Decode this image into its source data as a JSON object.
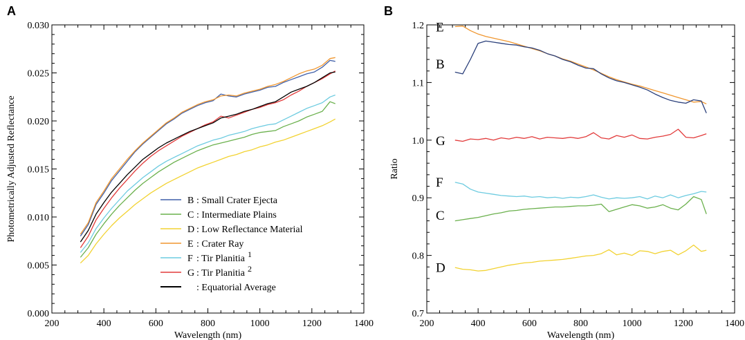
{
  "chart_data": [
    {
      "panel": "A",
      "type": "line",
      "xlabel": "Wavelength (nm)",
      "ylabel": "Photometrically Adjusted Reflectance",
      "xlim": [
        200,
        1400
      ],
      "ylim": [
        0.0,
        0.03
      ],
      "xticks": [
        "200",
        "400",
        "600",
        "800",
        "1000",
        "1200",
        "1400"
      ],
      "yticks": [
        "0.000",
        "0.005",
        "0.010",
        "0.015",
        "0.020",
        "0.025",
        "0.030"
      ],
      "legend_position": "bottom-right",
      "x": [
        310,
        340,
        370,
        400,
        430,
        460,
        490,
        520,
        550,
        580,
        610,
        640,
        670,
        700,
        730,
        760,
        790,
        820,
        850,
        880,
        910,
        940,
        970,
        1000,
        1030,
        1060,
        1090,
        1120,
        1150,
        1180,
        1210,
        1240,
        1270,
        1290
      ],
      "series": [
        {
          "key": "B",
          "letter": "B",
          "text": ": Small Crater Ejecta",
          "sup": "",
          "color": "#3f5fa8",
          "values": [
            0.008,
            0.0092,
            0.0113,
            0.0125,
            0.0138,
            0.0148,
            0.0158,
            0.0168,
            0.0176,
            0.0183,
            0.019,
            0.0197,
            0.0202,
            0.0208,
            0.0212,
            0.0216,
            0.0219,
            0.0221,
            0.0228,
            0.0226,
            0.0225,
            0.0228,
            0.023,
            0.0232,
            0.0235,
            0.0236,
            0.024,
            0.0243,
            0.0246,
            0.0249,
            0.0251,
            0.0256,
            0.0263,
            0.0262
          ]
        },
        {
          "key": "C",
          "letter": "C",
          "text": ": Intermediate Plains",
          "sup": "",
          "color": "#6ab04c",
          "values": [
            0.0058,
            0.0068,
            0.0082,
            0.0093,
            0.0103,
            0.0112,
            0.012,
            0.0128,
            0.0135,
            0.0141,
            0.0147,
            0.0152,
            0.0157,
            0.0161,
            0.0165,
            0.0169,
            0.0172,
            0.0175,
            0.0177,
            0.0179,
            0.0181,
            0.0183,
            0.0186,
            0.0188,
            0.0189,
            0.019,
            0.0194,
            0.0197,
            0.02,
            0.0204,
            0.0207,
            0.021,
            0.022,
            0.0218
          ]
        },
        {
          "key": "D",
          "letter": "D",
          "text": ": Low Reflectance Material",
          "sup": "",
          "color": "#f2d230",
          "values": [
            0.0052,
            0.006,
            0.0072,
            0.0082,
            0.0091,
            0.0099,
            0.0106,
            0.0113,
            0.0119,
            0.0125,
            0.013,
            0.0135,
            0.0139,
            0.0143,
            0.0147,
            0.0151,
            0.0154,
            0.0157,
            0.016,
            0.0163,
            0.0165,
            0.0168,
            0.017,
            0.0173,
            0.0175,
            0.0178,
            0.018,
            0.0183,
            0.0186,
            0.0189,
            0.0192,
            0.0195,
            0.0199,
            0.0202
          ]
        },
        {
          "key": "E",
          "letter": "E",
          "text": ": Crater Ray",
          "sup": "",
          "color": "#f0962e",
          "values": [
            0.0082,
            0.0094,
            0.0115,
            0.0127,
            0.014,
            0.015,
            0.016,
            0.0169,
            0.0177,
            0.0184,
            0.0191,
            0.0198,
            0.0203,
            0.0209,
            0.0213,
            0.0217,
            0.022,
            0.0222,
            0.0226,
            0.0227,
            0.0226,
            0.0229,
            0.0231,
            0.0233,
            0.0236,
            0.0238,
            0.0241,
            0.0245,
            0.0249,
            0.0252,
            0.0254,
            0.0258,
            0.0265,
            0.0266
          ]
        },
        {
          "key": "F",
          "letter": "F",
          "text": ": Tir Planitia",
          "sup": "1",
          "color": "#6ccbe0",
          "values": [
            0.0063,
            0.0073,
            0.0088,
            0.0099,
            0.0109,
            0.0118,
            0.0127,
            0.0134,
            0.0141,
            0.0147,
            0.0153,
            0.0158,
            0.0162,
            0.0166,
            0.017,
            0.0174,
            0.0177,
            0.018,
            0.0182,
            0.0185,
            0.0187,
            0.0189,
            0.0192,
            0.0194,
            0.0196,
            0.0197,
            0.0201,
            0.0205,
            0.0209,
            0.0213,
            0.0216,
            0.0219,
            0.0225,
            0.0227
          ]
        },
        {
          "key": "G",
          "letter": "G",
          "text": ": Tir Planitia",
          "sup": "2",
          "color": "#e23a3a",
          "values": [
            0.0068,
            0.008,
            0.0097,
            0.0109,
            0.012,
            0.013,
            0.0139,
            0.0148,
            0.0156,
            0.0163,
            0.0169,
            0.0174,
            0.0179,
            0.0184,
            0.0188,
            0.0192,
            0.0196,
            0.0199,
            0.0205,
            0.0203,
            0.0206,
            0.0209,
            0.0212,
            0.0214,
            0.0217,
            0.0219,
            0.0222,
            0.0227,
            0.0231,
            0.0236,
            0.024,
            0.0244,
            0.0249,
            0.0252
          ]
        },
        {
          "key": "avg",
          "letter": "",
          "text": ": Equatorial Average",
          "sup": "",
          "color": "#000000",
          "values": [
            0.0074,
            0.0086,
            0.0103,
            0.0115,
            0.0126,
            0.0135,
            0.0144,
            0.0152,
            0.016,
            0.0166,
            0.0172,
            0.0177,
            0.0181,
            0.0185,
            0.0189,
            0.0192,
            0.0195,
            0.0198,
            0.0203,
            0.0205,
            0.0207,
            0.021,
            0.0212,
            0.0215,
            0.0218,
            0.022,
            0.0225,
            0.023,
            0.0233,
            0.0236,
            0.024,
            0.0245,
            0.025,
            0.0251
          ]
        }
      ]
    },
    {
      "panel": "B",
      "type": "line",
      "xlabel": "Wavelength (nm)",
      "ylabel": "Ratio",
      "xlim": [
        200,
        1400
      ],
      "ylim": [
        0.7,
        1.2
      ],
      "xticks": [
        "200",
        "400",
        "600",
        "800",
        "1000",
        "1200",
        "1400"
      ],
      "yticks": [
        "0.7",
        "0.8",
        "0.9",
        "1.0",
        "1.1",
        "1.2"
      ],
      "x": [
        310,
        340,
        370,
        400,
        430,
        460,
        490,
        520,
        550,
        580,
        610,
        640,
        670,
        700,
        730,
        760,
        790,
        820,
        850,
        880,
        910,
        940,
        970,
        1000,
        1030,
        1060,
        1090,
        1120,
        1150,
        1180,
        1210,
        1240,
        1270,
        1290
      ],
      "series": [
        {
          "key": "E",
          "label": "E",
          "color": "#f0962e",
          "values": [
            1.197,
            1.198,
            1.19,
            1.184,
            1.18,
            1.177,
            1.174,
            1.171,
            1.167,
            1.163,
            1.159,
            1.155,
            1.15,
            1.146,
            1.141,
            1.137,
            1.132,
            1.127,
            1.122,
            1.116,
            1.11,
            1.105,
            1.101,
            1.097,
            1.094,
            1.09,
            1.086,
            1.082,
            1.078,
            1.074,
            1.07,
            1.066,
            1.067,
            1.063
          ]
        },
        {
          "key": "B",
          "label": "B",
          "color": "#2a3f7a",
          "values": [
            1.118,
            1.115,
            1.14,
            1.168,
            1.172,
            1.17,
            1.168,
            1.166,
            1.165,
            1.162,
            1.16,
            1.156,
            1.15,
            1.146,
            1.14,
            1.136,
            1.13,
            1.125,
            1.124,
            1.115,
            1.108,
            1.103,
            1.1,
            1.096,
            1.092,
            1.087,
            1.08,
            1.074,
            1.069,
            1.066,
            1.064,
            1.07,
            1.068,
            1.047
          ]
        },
        {
          "key": "G",
          "label": "G",
          "color": "#e23a3a",
          "values": [
            1.0,
            0.998,
            1.002,
            1.001,
            1.003,
            1.0,
            1.004,
            1.002,
            1.005,
            1.003,
            1.006,
            1.002,
            1.005,
            1.004,
            1.003,
            1.005,
            1.003,
            1.006,
            1.013,
            1.004,
            1.002,
            1.008,
            1.005,
            1.009,
            1.003,
            1.002,
            1.005,
            1.007,
            1.01,
            1.019,
            1.005,
            1.004,
            1.008,
            1.011
          ]
        },
        {
          "key": "F",
          "label": "F",
          "color": "#6ccbe0",
          "values": [
            0.927,
            0.924,
            0.915,
            0.91,
            0.908,
            0.906,
            0.904,
            0.903,
            0.902,
            0.903,
            0.901,
            0.902,
            0.9,
            0.901,
            0.899,
            0.901,
            0.9,
            0.902,
            0.905,
            0.901,
            0.898,
            0.9,
            0.899,
            0.9,
            0.902,
            0.898,
            0.903,
            0.9,
            0.905,
            0.9,
            0.904,
            0.907,
            0.911,
            0.91
          ]
        },
        {
          "key": "C",
          "label": "C",
          "color": "#6ab04c",
          "values": [
            0.86,
            0.862,
            0.864,
            0.866,
            0.869,
            0.872,
            0.874,
            0.877,
            0.878,
            0.88,
            0.881,
            0.882,
            0.883,
            0.884,
            0.884,
            0.885,
            0.886,
            0.886,
            0.887,
            0.889,
            0.876,
            0.88,
            0.884,
            0.888,
            0.886,
            0.882,
            0.884,
            0.888,
            0.882,
            0.879,
            0.889,
            0.902,
            0.897,
            0.872
          ]
        },
        {
          "key": "D",
          "label": "D",
          "color": "#f2d230",
          "values": [
            0.779,
            0.776,
            0.775,
            0.773,
            0.774,
            0.777,
            0.78,
            0.783,
            0.785,
            0.787,
            0.788,
            0.79,
            0.791,
            0.792,
            0.793,
            0.795,
            0.797,
            0.799,
            0.8,
            0.803,
            0.81,
            0.801,
            0.804,
            0.8,
            0.808,
            0.807,
            0.803,
            0.807,
            0.809,
            0.801,
            0.808,
            0.818,
            0.807,
            0.809
          ]
        }
      ]
    }
  ]
}
